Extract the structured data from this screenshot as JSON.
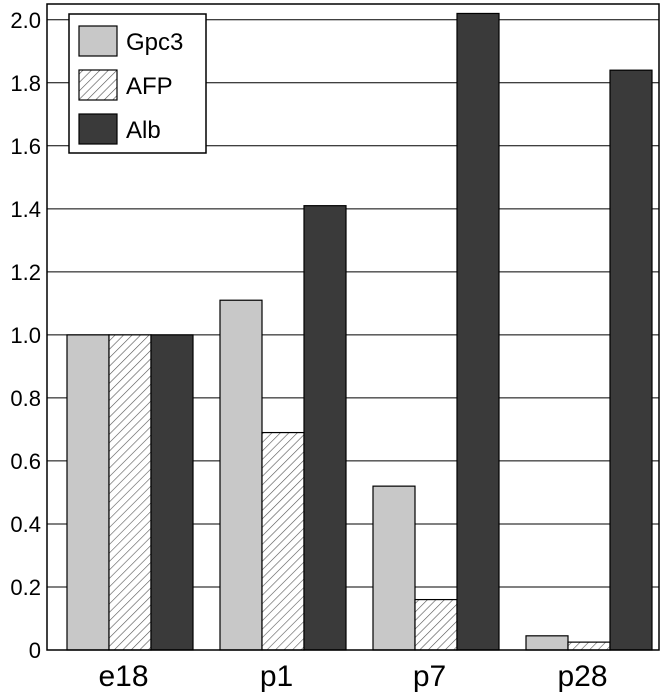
{
  "chart_data": {
    "type": "bar",
    "categories": [
      "e18",
      "p1",
      "p7",
      "p28"
    ],
    "series": [
      {
        "name": "Gpc3",
        "values": [
          1.0,
          1.11,
          0.52,
          0.045
        ],
        "color": "#c8c8c8",
        "pattern": "solid"
      },
      {
        "name": "AFP",
        "values": [
          1.0,
          0.69,
          0.16,
          0.025
        ],
        "color": "#ffffff",
        "pattern": "hatched"
      },
      {
        "name": "Alb",
        "values": [
          1.0,
          1.41,
          2.02,
          1.84
        ],
        "color": "#3a3a3a",
        "pattern": "solid"
      }
    ],
    "yticks": [
      "0",
      "0.2",
      "0.4",
      "0.6",
      "0.8",
      "1.0",
      "1.2",
      "1.4",
      "1.6",
      "1.8",
      "2.0"
    ],
    "ylim": [
      0,
      2.05
    ],
    "grid": true,
    "legend": "top-left",
    "title": "",
    "xlabel": "",
    "ylabel": ""
  }
}
